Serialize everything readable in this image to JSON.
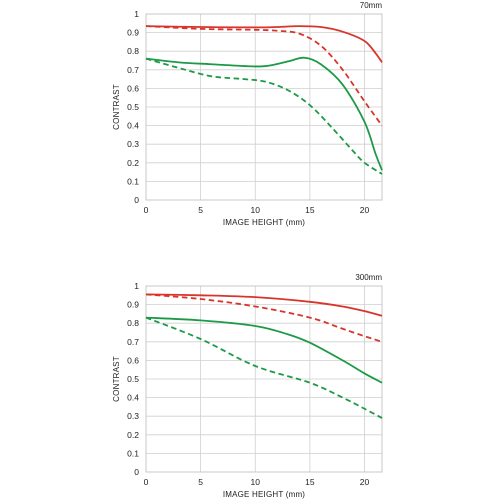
{
  "chart_data": [
    {
      "type": "line",
      "title": "70mm",
      "xlabel": "IMAGE HEIGHT (mm)",
      "ylabel": "CONTRAST",
      "xlim": [
        0,
        21.6
      ],
      "ylim": [
        0,
        1
      ],
      "x_ticks": [
        "0",
        "5",
        "10",
        "15",
        "20"
      ],
      "y_ticks": [
        "0",
        "0.1",
        "0.2",
        "0.3",
        "0.4",
        "0.5",
        "0.6",
        "0.7",
        "0.8",
        "0.9",
        "1"
      ],
      "grid": true,
      "series": [
        {
          "color": "#d9342b",
          "dash": false,
          "x": [
            0,
            5,
            10,
            12,
            14,
            16,
            18,
            20,
            21,
            21.6
          ],
          "y": [
            0.935,
            0.93,
            0.928,
            0.93,
            0.935,
            0.93,
            0.905,
            0.855,
            0.79,
            0.74
          ]
        },
        {
          "color": "#d9342b",
          "dash": true,
          "x": [
            0,
            5,
            10,
            12,
            14,
            16,
            18,
            20,
            21.6
          ],
          "y": [
            0.935,
            0.92,
            0.915,
            0.91,
            0.895,
            0.83,
            0.7,
            0.53,
            0.4
          ]
        },
        {
          "color": "#1d9a46",
          "dash": false,
          "x": [
            0,
            3,
            6,
            9,
            11,
            13,
            14.5,
            16,
            18,
            20,
            21,
            21.6
          ],
          "y": [
            0.76,
            0.74,
            0.73,
            0.72,
            0.72,
            0.745,
            0.765,
            0.73,
            0.62,
            0.42,
            0.25,
            0.16
          ]
        },
        {
          "color": "#1d9a46",
          "dash": true,
          "x": [
            0,
            3,
            6,
            9,
            11,
            13,
            15,
            17,
            19,
            20,
            21.6
          ],
          "y": [
            0.76,
            0.71,
            0.665,
            0.65,
            0.635,
            0.59,
            0.51,
            0.39,
            0.26,
            0.2,
            0.14
          ]
        }
      ]
    },
    {
      "type": "line",
      "title": "300mm",
      "xlabel": "IMAGE HEIGHT (mm)",
      "ylabel": "CONTRAST",
      "xlim": [
        0,
        21.6
      ],
      "ylim": [
        0,
        1
      ],
      "x_ticks": [
        "0",
        "5",
        "10",
        "15",
        "20"
      ],
      "y_ticks": [
        "0",
        "0.1",
        "0.2",
        "0.3",
        "0.4",
        "0.5",
        "0.6",
        "0.7",
        "0.8",
        "0.9",
        "1"
      ],
      "grid": true,
      "series": [
        {
          "color": "#d9342b",
          "dash": false,
          "x": [
            0,
            5,
            10,
            15,
            18,
            20,
            21.6
          ],
          "y": [
            0.955,
            0.95,
            0.94,
            0.915,
            0.89,
            0.865,
            0.84
          ]
        },
        {
          "color": "#d9342b",
          "dash": true,
          "x": [
            0,
            5,
            10,
            15,
            18,
            20,
            21.6
          ],
          "y": [
            0.955,
            0.93,
            0.89,
            0.83,
            0.77,
            0.73,
            0.7
          ]
        },
        {
          "color": "#1d9a46",
          "dash": false,
          "x": [
            0,
            5,
            10,
            13,
            15,
            18,
            20,
            21.6
          ],
          "y": [
            0.83,
            0.815,
            0.785,
            0.74,
            0.695,
            0.6,
            0.53,
            0.48
          ]
        },
        {
          "color": "#1d9a46",
          "dash": true,
          "x": [
            0,
            5,
            10,
            15,
            18,
            20,
            21.6
          ],
          "y": [
            0.83,
            0.715,
            0.57,
            0.48,
            0.4,
            0.34,
            0.29
          ]
        }
      ]
    }
  ]
}
